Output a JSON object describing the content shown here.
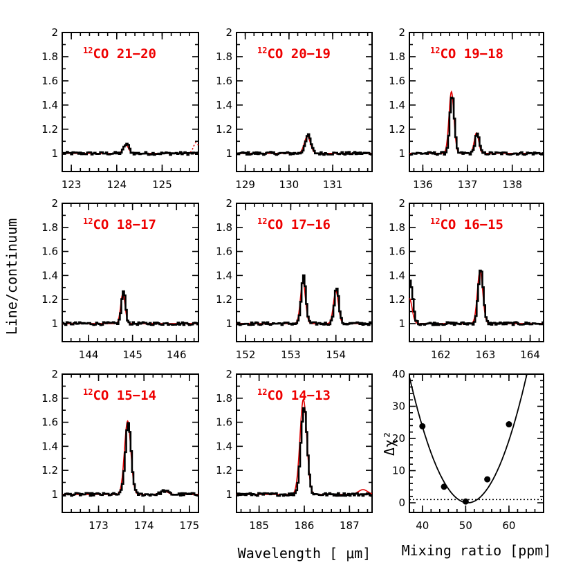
{
  "figure": {
    "ylabel": "Line/continuum",
    "xlabel": "Wavelength [ μm]",
    "xlabel_right": "Mixing ratio [ppm]"
  },
  "colors": {
    "observed": "#000000",
    "model": "#e00000",
    "label": "#ee0000"
  },
  "chart_data": [
    {
      "type": "line",
      "label_sup": "12",
      "label_text": "CO 21−20",
      "xlim": [
        122.8,
        125.8
      ],
      "ylim": [
        0.85,
        2.0
      ],
      "xticks": [
        123,
        124,
        125
      ],
      "yticks": [
        1,
        1.2,
        1.4,
        1.6,
        1.8,
        2
      ],
      "ytick_labels": [
        "1",
        "1.2",
        "1.4",
        "1.6",
        "1.8",
        "2"
      ],
      "continuum": 1.0,
      "lines": [
        {
          "center": 124.2,
          "obs_peak": 1.08,
          "model_peak": 1.07,
          "width": 0.06
        }
      ],
      "model_edge_line": {
        "center": 125.75,
        "peak": 1.09,
        "width": 0.06
      }
    },
    {
      "type": "line",
      "label_sup": "12",
      "label_text": "CO 20−19",
      "xlim": [
        128.8,
        131.9
      ],
      "ylim": [
        0.85,
        2.0
      ],
      "xticks": [
        129,
        130,
        131
      ],
      "yticks": [
        1,
        1.2,
        1.4,
        1.6,
        1.8,
        2
      ],
      "ytick_labels": [
        "1",
        "1.2",
        "1.4",
        "1.6",
        "1.8",
        "2"
      ],
      "continuum": 1.0,
      "lines": [
        {
          "center": 130.42,
          "obs_peak": 1.15,
          "model_peak": 1.14,
          "width": 0.07
        }
      ]
    },
    {
      "type": "line",
      "label_sup": "12",
      "label_text": "CO 19−18",
      "xlim": [
        135.7,
        138.7
      ],
      "ylim": [
        0.85,
        2.0
      ],
      "xticks": [
        136,
        137,
        138
      ],
      "yticks": [
        1,
        1.2,
        1.4,
        1.6,
        1.8,
        2
      ],
      "ytick_labels": [
        "1",
        "1.2",
        "1.4",
        "1.6",
        "1.8",
        "2"
      ],
      "continuum": 1.0,
      "lines": [
        {
          "center": 136.64,
          "obs_peak": 1.48,
          "model_peak": 1.51,
          "width": 0.055
        },
        {
          "center": 137.2,
          "obs_peak": 1.17,
          "model_peak": 1.17,
          "width": 0.05
        }
      ]
    },
    {
      "type": "line",
      "label_sup": "12",
      "label_text": "CO 18−17",
      "xlim": [
        143.4,
        146.5
      ],
      "ylim": [
        0.85,
        2.0
      ],
      "xticks": [
        144,
        145,
        146
      ],
      "yticks": [
        1,
        1.2,
        1.4,
        1.6,
        1.8,
        2
      ],
      "ytick_labels": [
        "1",
        "1.2",
        "1.4",
        "1.6",
        "1.8",
        "2"
      ],
      "continuum": 1.0,
      "lines": [
        {
          "center": 144.78,
          "obs_peak": 1.27,
          "model_peak": 1.25,
          "width": 0.05
        }
      ]
    },
    {
      "type": "line",
      "label_sup": "12",
      "label_text": "CO 17−16",
      "xlim": [
        151.8,
        154.8
      ],
      "ylim": [
        0.85,
        2.0
      ],
      "xticks": [
        152,
        153,
        154
      ],
      "yticks": [
        1,
        1.2,
        1.4,
        1.6,
        1.8,
        2
      ],
      "ytick_labels": [
        "1",
        "1.2",
        "1.4",
        "1.6",
        "1.8",
        "2"
      ],
      "continuum": 1.0,
      "lines": [
        {
          "center": 153.27,
          "obs_peak": 1.39,
          "model_peak": 1.35,
          "width": 0.055
        },
        {
          "center": 154.0,
          "obs_peak": 1.3,
          "model_peak": 1.27,
          "width": 0.055
        }
      ]
    },
    {
      "type": "line",
      "label_sup": "12",
      "label_text": "CO 16−15",
      "xlim": [
        161.3,
        164.3
      ],
      "ylim": [
        0.85,
        2.0
      ],
      "xticks": [
        162,
        163,
        164
      ],
      "yticks": [
        1,
        1.2,
        1.4,
        1.6,
        1.8,
        2
      ],
      "ytick_labels": [
        "1",
        "1.2",
        "1.4",
        "1.6",
        "1.8",
        "2"
      ],
      "continuum": 1.0,
      "lines": [
        {
          "center": 162.88,
          "obs_peak": 1.46,
          "model_peak": 1.44,
          "width": 0.06
        }
      ],
      "left_edge": {
        "peak": 1.35,
        "width": 0.06
      }
    },
    {
      "type": "line",
      "label_sup": "12",
      "label_text": "CO 15−14",
      "xlim": [
        172.2,
        175.2
      ],
      "ylim": [
        0.85,
        2.0
      ],
      "xticks": [
        173,
        174,
        175
      ],
      "yticks": [
        1,
        1.2,
        1.4,
        1.6,
        1.8,
        2
      ],
      "ytick_labels": [
        "1",
        "1.2",
        "1.4",
        "1.6",
        "1.8",
        "2"
      ],
      "continuum": 1.0,
      "lines": [
        {
          "center": 173.64,
          "obs_peak": 1.59,
          "model_peak": 1.61,
          "width": 0.07
        },
        {
          "center": 174.44,
          "obs_peak": 1.03,
          "model_peak": 1.03,
          "width": 0.08
        }
      ]
    },
    {
      "type": "line",
      "label_sup": "12",
      "label_text": "CO 14−13",
      "xlim": [
        184.5,
        187.5
      ],
      "ylim": [
        0.85,
        2.0
      ],
      "xticks": [
        185,
        186,
        187
      ],
      "yticks": [
        1,
        1.2,
        1.4,
        1.6,
        1.8,
        2
      ],
      "ytick_labels": [
        "1",
        "1.2",
        "1.4",
        "1.6",
        "1.8",
        "2"
      ],
      "continuum": 1.0,
      "lines": [
        {
          "center": 185.98,
          "obs_peak": 1.73,
          "model_peak": 1.79,
          "width": 0.075
        },
        {
          "center": 187.3,
          "obs_peak": 1.0,
          "model_peak": 1.04,
          "width": 0.1
        }
      ]
    },
    {
      "type": "scatter",
      "xlabel": "Mixing ratio [ppm]",
      "ylabel": "Δχ²",
      "xlim": [
        37,
        68
      ],
      "ylim": [
        -3,
        40
      ],
      "xticks": [
        40,
        50,
        60
      ],
      "yticks": [
        0,
        10,
        20,
        30,
        40
      ],
      "x": [
        40,
        45,
        50,
        55,
        60
      ],
      "y": [
        23.8,
        5,
        0.4,
        7.3,
        24.4
      ],
      "fit_curve": {
        "type": "parabola",
        "vertex_x": 50.5,
        "vertex_y": 0,
        "coeff": 0.215
      },
      "threshold": 1.0
    }
  ]
}
